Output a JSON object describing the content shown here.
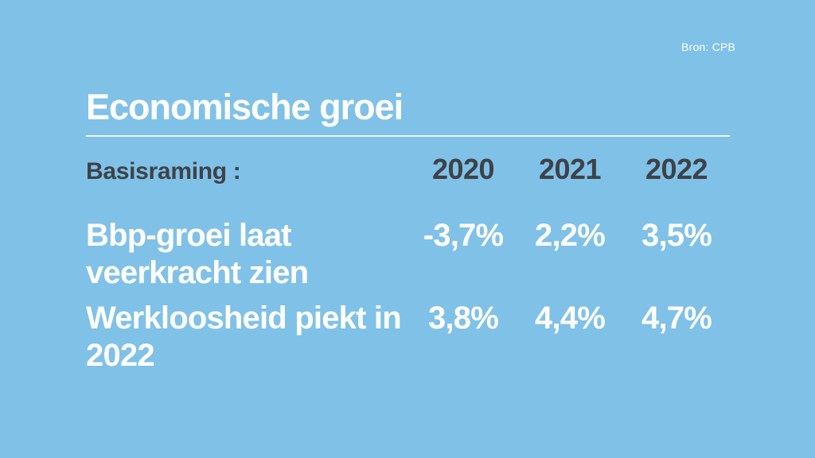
{
  "page": {
    "source_label": "Bron: CPB",
    "title": "Economische groei"
  },
  "table": {
    "header": {
      "label": "Basisraming :",
      "years": [
        "2020",
        "2021",
        "2022"
      ]
    },
    "rows": [
      {
        "label": "Bbp-groei laat veerkracht zien",
        "values": [
          "-3,7%",
          "2,2%",
          "3,5%"
        ]
      },
      {
        "label": "Werkloosheid piekt in 2022",
        "values": [
          "3,8%",
          "4,4%",
          "4,7%"
        ]
      }
    ]
  },
  "colors": {
    "background": "#80C1E8",
    "dark_text": "#3E4247",
    "light_text": "#FFFFFF",
    "divider": "#E9F5FB"
  },
  "chart_data": {
    "type": "table",
    "title": "Economische groei",
    "subtitle_label": "Basisraming :",
    "source": "Bron: CPB",
    "columns": [
      "2020",
      "2021",
      "2022"
    ],
    "unit": "%",
    "rows": [
      {
        "label": "Bbp-groei laat veerkracht zien",
        "values": [
          -3.7,
          2.2,
          3.5
        ]
      },
      {
        "label": "Werkloosheid piekt in 2022",
        "values": [
          3.8,
          4.4,
          4.7
        ]
      }
    ],
    "layout_hints": {
      "style": "broadcast-infographic-card",
      "value_alignment": "center",
      "header_text_color": "dark",
      "body_text_color": "white"
    }
  }
}
